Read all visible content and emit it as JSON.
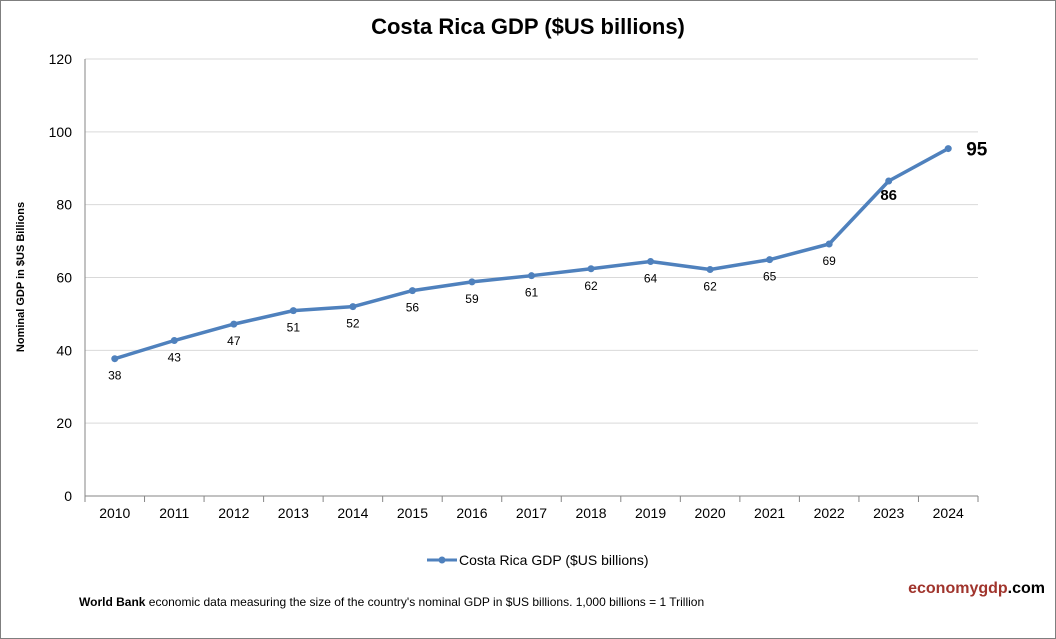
{
  "chart_data": {
    "type": "line",
    "title": "Costa Rica GDP ($US billions)",
    "xlabel": "",
    "ylabel": "Nominal GDP in $US Billions",
    "categories": [
      "2010",
      "2011",
      "2012",
      "2013",
      "2014",
      "2015",
      "2016",
      "2017",
      "2018",
      "2019",
      "2020",
      "2021",
      "2022",
      "2023",
      "2024"
    ],
    "series": [
      {
        "name": "Costa Rica GDP ($US billions)",
        "values": [
          37.7,
          42.7,
          47.2,
          50.9,
          52.0,
          56.4,
          58.8,
          60.5,
          62.4,
          64.4,
          62.2,
          64.9,
          69.2,
          86.5,
          95.4
        ],
        "data_labels": [
          "38",
          "43",
          "47",
          "51",
          "52",
          "56",
          "59",
          "61",
          "62",
          "64",
          "62",
          "65",
          "69",
          "86",
          "95"
        ],
        "color": "#4f81bd"
      }
    ],
    "ylim": [
      0,
      120
    ],
    "yticks": [
      0,
      20,
      40,
      60,
      80,
      100,
      120
    ],
    "grid": true,
    "legend": "bottom"
  },
  "footer": {
    "source_bold": "World Bank",
    "source_text": " economic data  measuring the size of the country's nominal GDP in $US billions. 1,000 billions = 1 Trillion"
  },
  "logo": {
    "part1": "economygdp",
    "part2": ".com",
    "color": "#a0342c"
  }
}
